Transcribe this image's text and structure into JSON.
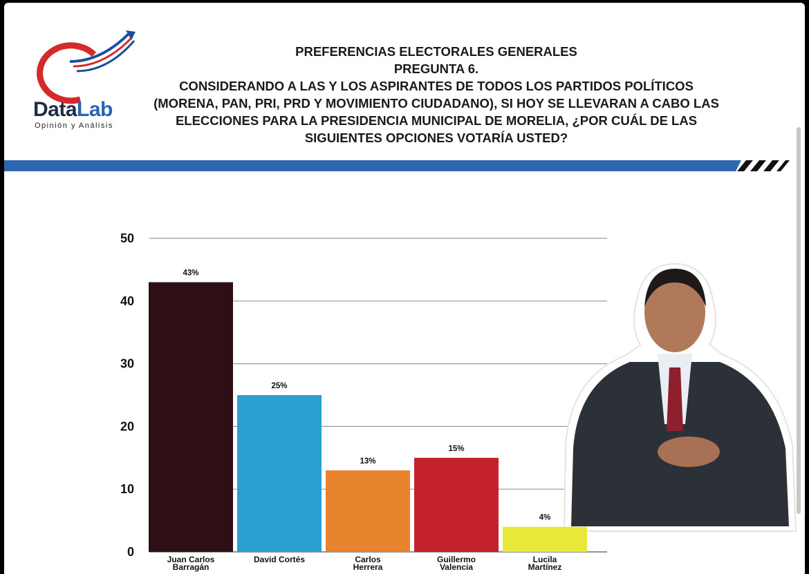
{
  "header": {
    "logo": {
      "name_first": "Data",
      "name_second": "Lab",
      "tagline": "Opinión y Análisis"
    },
    "title": "PREFERENCIAS ELECTORALES GENERALES",
    "subtitle": "PREGUNTA 6.",
    "question": "CONSIDERANDO A LAS Y LOS ASPIRANTES DE TODOS LOS PARTIDOS POLÍTICOS (MORENA, PAN, PRI, PRD Y MOVIMIENTO CIUDADANO), SI HOY SE LLEVARAN A CABO LAS ELECCIONES PARA LA PRESIDENCIA MUNICIPAL DE MORELIA, ¿POR CUÁL DE LAS SIGUIENTES OPCIONES VOTARÍA USTED?"
  },
  "chart_data": {
    "type": "bar",
    "categories": [
      "Juan Carlos Barragán",
      "David Cortés",
      "Carlos Herrera",
      "Guillermo Valencia",
      "Lucila Martínez"
    ],
    "values": [
      43,
      25,
      13,
      15,
      4
    ],
    "value_labels": [
      "43%",
      "25%",
      "13%",
      "15%",
      "4%"
    ],
    "colors": [
      "#2e0f15",
      "#2b9fd0",
      "#e8832e",
      "#c4232d",
      "#e8e83a"
    ],
    "ylim": [
      0,
      50
    ],
    "yticks": [
      0,
      10,
      20,
      30,
      40,
      50
    ],
    "grid": true
  }
}
